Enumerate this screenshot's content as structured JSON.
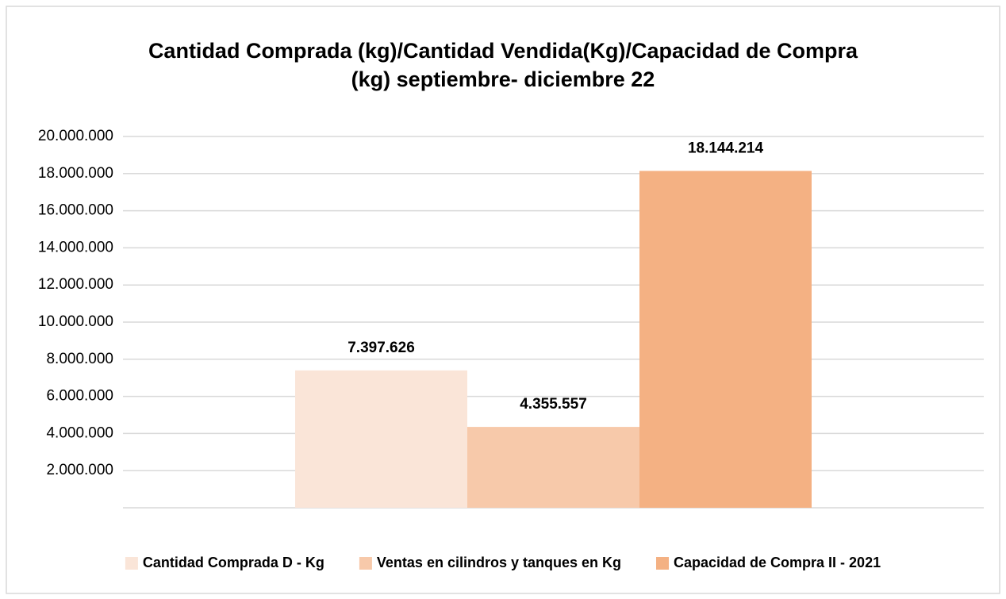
{
  "chart_data": {
    "type": "bar",
    "title": "Cantidad Comprada (kg)/Cantidad Vendida(Kg)/Capacidad de Compra (kg) septiembre- diciembre 22",
    "categories": [
      null
    ],
    "series": [
      {
        "name": "Cantidad Comprada D - Kg",
        "color": "#fae5d8",
        "values": [
          7397626
        ],
        "value_labels": [
          "7.397.626"
        ]
      },
      {
        "name": "Ventas en cilindros y tanques en Kg",
        "color": "#f7c9aa",
        "values": [
          4355557
        ],
        "value_labels": [
          "4.355.557"
        ]
      },
      {
        "name": "Capacidad de Compra II - 2021",
        "color": "#f4b183",
        "values": [
          18144214
        ],
        "value_labels": [
          "18.144.214"
        ]
      }
    ],
    "ylim": [
      0,
      20000000
    ],
    "yticks": [
      {
        "value": 2000000,
        "label": "2.000.000"
      },
      {
        "value": 4000000,
        "label": "4.000.000"
      },
      {
        "value": 6000000,
        "label": "6.000.000"
      },
      {
        "value": 8000000,
        "label": "8.000.000"
      },
      {
        "value": 10000000,
        "label": "10.000.000"
      },
      {
        "value": 12000000,
        "label": "12.000.000"
      },
      {
        "value": 14000000,
        "label": "14.000.000"
      },
      {
        "value": 16000000,
        "label": "16.000.000"
      },
      {
        "value": 18000000,
        "label": "18.000.000"
      },
      {
        "value": 20000000,
        "label": "20.000.000"
      }
    ],
    "grid": true,
    "legend": "bottom"
  }
}
